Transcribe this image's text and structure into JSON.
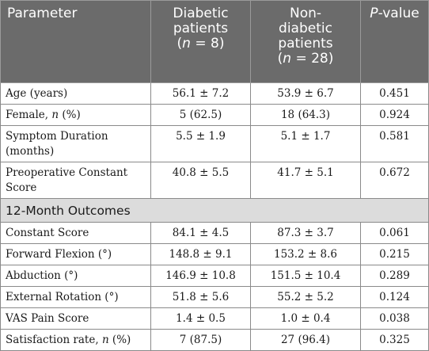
{
  "table": {
    "headers": {
      "parameter": "Parameter",
      "diabetic_line1": "Diabetic",
      "diabetic_line2": "patients",
      "diabetic_n_open": "(",
      "diabetic_n_var": "n",
      "diabetic_n_rest": " = 8)",
      "nondiabetic_line1": "Non-",
      "nondiabetic_line2": "diabetic",
      "nondiabetic_line3": "patients",
      "nondiabetic_n_open": "(",
      "nondiabetic_n_var": "n",
      "nondiabetic_n_rest": " = 28)",
      "pvalue_var": "P",
      "pvalue_rest": "-value"
    },
    "baseline_rows": [
      {
        "label": "Age (years)",
        "diabetic": "56.1 ± 7.2",
        "nondiabetic": "53.9 ± 6.7",
        "p": "0.451"
      },
      {
        "label_pre": "Female, ",
        "label_var": "n",
        "label_post": " (%)",
        "diabetic": "5 (62.5)",
        "nondiabetic": "18 (64.3)",
        "p": "0.924"
      },
      {
        "label_line1": "Symptom Duration",
        "label_line2": "(months)",
        "diabetic": "5.5 ± 1.9",
        "nondiabetic": "5.1 ± 1.7",
        "p": "0.581"
      },
      {
        "label_line1": "Preoperative Constant",
        "label_line2": "Score",
        "diabetic": "40.8 ± 5.5",
        "nondiabetic": "41.7 ± 5.1",
        "p": "0.672"
      }
    ],
    "section_title": "12-Month Outcomes",
    "outcome_rows": [
      {
        "label": "Constant Score",
        "diabetic": "84.1 ± 4.5",
        "nondiabetic": "87.3 ± 3.7",
        "p": "0.061"
      },
      {
        "label": "Forward Flexion (°)",
        "diabetic": "148.8 ± 9.1",
        "nondiabetic": "153.2 ± 8.6",
        "p": "0.215"
      },
      {
        "label": "Abduction (°)",
        "diabetic": "146.9 ± 10.8",
        "nondiabetic": "151.5 ± 10.4",
        "p": "0.289"
      },
      {
        "label": "External Rotation (°)",
        "diabetic": "51.8 ± 5.6",
        "nondiabetic": "55.2 ± 5.2",
        "p": "0.124"
      },
      {
        "label": "VAS Pain Score",
        "diabetic": "1.4 ± 0.5",
        "nondiabetic": "1.0 ± 0.4",
        "p": "0.038"
      },
      {
        "label_pre": "Satisfaction rate, ",
        "label_var": "n",
        "label_post": " (%)",
        "diabetic": "7 (87.5)",
        "nondiabetic": "27 (96.4)",
        "p": "0.325"
      }
    ]
  }
}
